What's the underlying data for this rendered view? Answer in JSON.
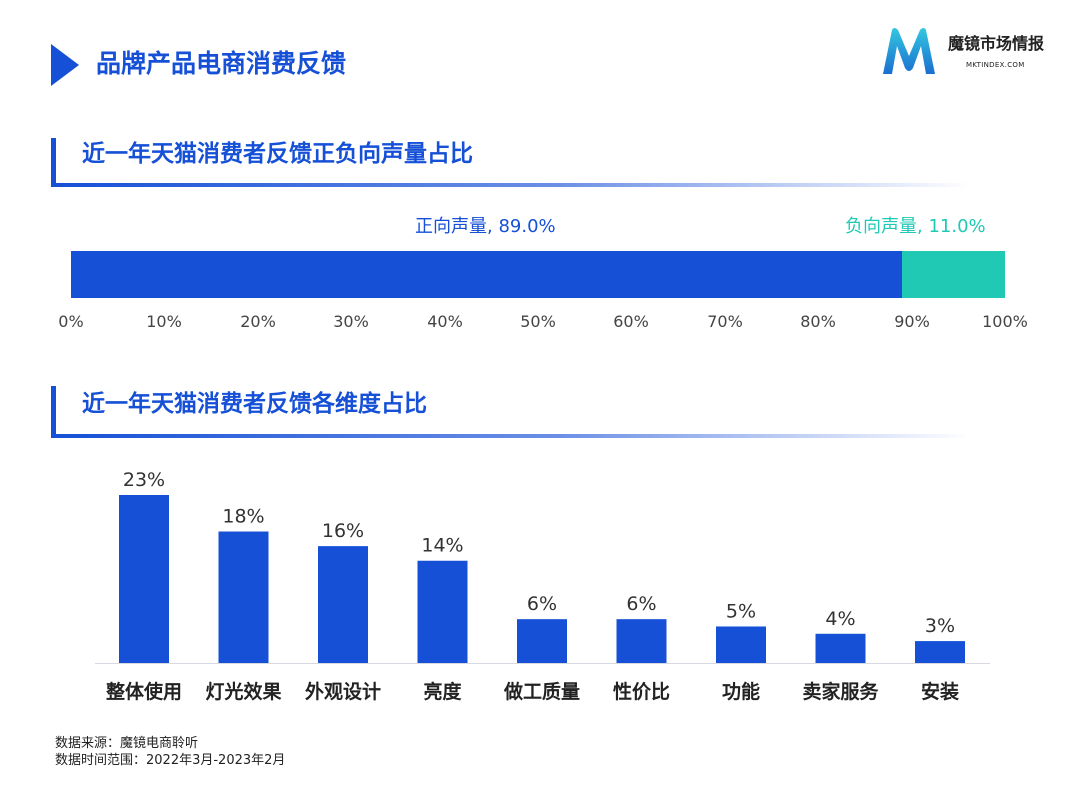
{
  "header": {
    "title": "品牌产品电商消费反馈",
    "logo_cn": "魔镜市场情报",
    "logo_en": "MKTINDEX.COM"
  },
  "colors": {
    "accent": "#1550d6",
    "bar_blue": "#1550d6",
    "positive": "#1550d6",
    "negative": "#20c9b4"
  },
  "chart_data": [
    {
      "type": "bar",
      "orientation": "horizontal-stacked",
      "title": "近一年天猫消费者反馈正负向声量占比",
      "series": [
        {
          "name": "正向声量",
          "value": 89.0,
          "label": "正向声量, 89.0%"
        },
        {
          "name": "负向声量",
          "value": 11.0,
          "label": "负向声量, 11.0%"
        }
      ],
      "xlim": [
        0,
        100
      ],
      "x_ticks": [
        "0%",
        "10%",
        "20%",
        "30%",
        "40%",
        "50%",
        "60%",
        "70%",
        "80%",
        "90%",
        "100%"
      ],
      "grid": false
    },
    {
      "type": "bar",
      "title": "近一年天猫消费者反馈各维度占比",
      "categories": [
        "整体使用",
        "灯光效果",
        "外观设计",
        "亮度",
        "做工质量",
        "性价比",
        "功能",
        "卖家服务",
        "安装"
      ],
      "values": [
        23,
        18,
        16,
        14,
        6,
        6,
        5,
        4,
        3
      ],
      "value_labels": [
        "23%",
        "18%",
        "16%",
        "14%",
        "6%",
        "6%",
        "5%",
        "4%",
        "3%"
      ],
      "ylim": [
        0,
        25
      ],
      "grid": false
    }
  ],
  "footer": {
    "source": "数据来源：魔镜电商聆听",
    "period": "数据时间范围：2022年3月-2023年2月"
  }
}
